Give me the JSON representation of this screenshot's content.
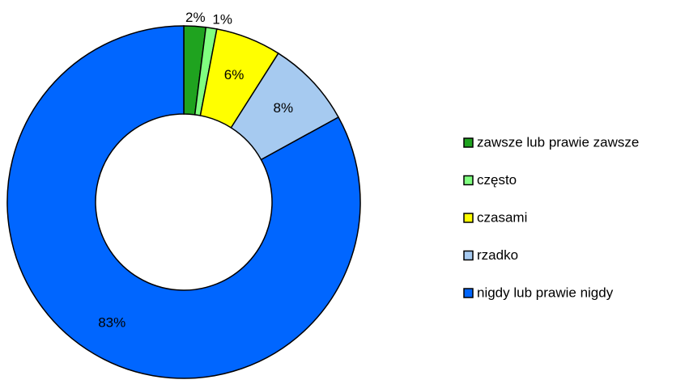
{
  "chart_data": {
    "type": "donut",
    "categories": [
      "zawsze lub prawie zawsze",
      "często",
      "czasami",
      "rzadko",
      "nigdy lub prawie nigdy"
    ],
    "values": [
      2,
      1,
      6,
      8,
      83
    ],
    "value_labels": [
      "2%",
      "1%",
      "6%",
      "8%",
      "83%"
    ],
    "colors": [
      "#1fa31f",
      "#80ff80",
      "#ffff00",
      "#a6caf0",
      "#0066ff"
    ],
    "legend": "right"
  }
}
